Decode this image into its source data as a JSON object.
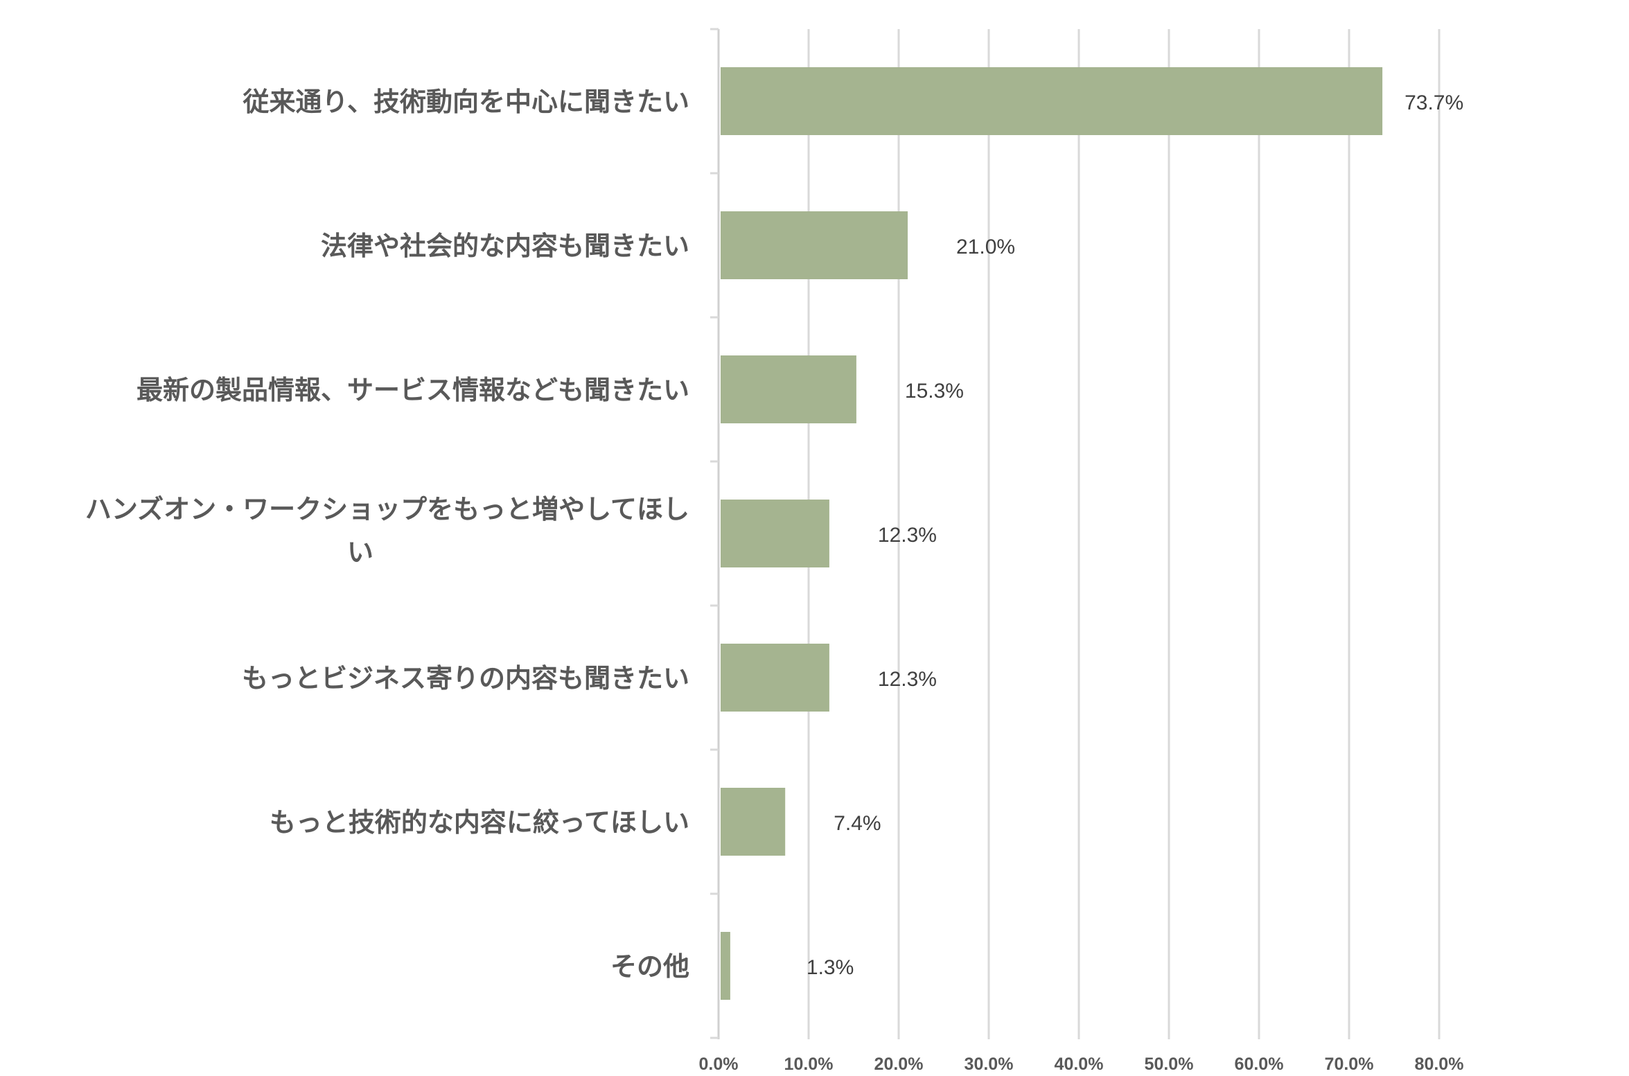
{
  "chart_data": {
    "type": "bar",
    "orientation": "horizontal",
    "title": "",
    "xlabel": "",
    "ylabel": "",
    "categories": [
      [
        "従来通り、技術動向を中心に聞きたい"
      ],
      [
        "法律や社会的な内容も聞きたい"
      ],
      [
        "最新の製品情報、サービス情報なども聞きたい"
      ],
      [
        "ハンズオン・ワークショップをもっと増やしてほし",
        "い"
      ],
      [
        "もっとビジネス寄りの内容も聞きたい"
      ],
      [
        "もっと技術的な内容に絞ってほしい"
      ],
      [
        "その他"
      ]
    ],
    "values": [
      73.7,
      21.0,
      15.3,
      12.3,
      12.3,
      7.4,
      1.3
    ],
    "value_labels": [
      "73.7%",
      "21.0%",
      "15.3%",
      "12.3%",
      "12.3%",
      "7.4%",
      "1.3%"
    ],
    "xlim": [
      0,
      80
    ],
    "ticks": [
      0,
      10,
      20,
      30,
      40,
      50,
      60,
      70,
      80
    ],
    "tick_labels": [
      "0.0%",
      "10.0%",
      "20.0%",
      "30.0%",
      "40.0%",
      "50.0%",
      "60.0%",
      "70.0%",
      "80.0%"
    ],
    "grid": true,
    "legend": "none",
    "colors": {
      "bar": "#a5b490",
      "grid": "#d9d9d9",
      "text": "#595959"
    }
  }
}
